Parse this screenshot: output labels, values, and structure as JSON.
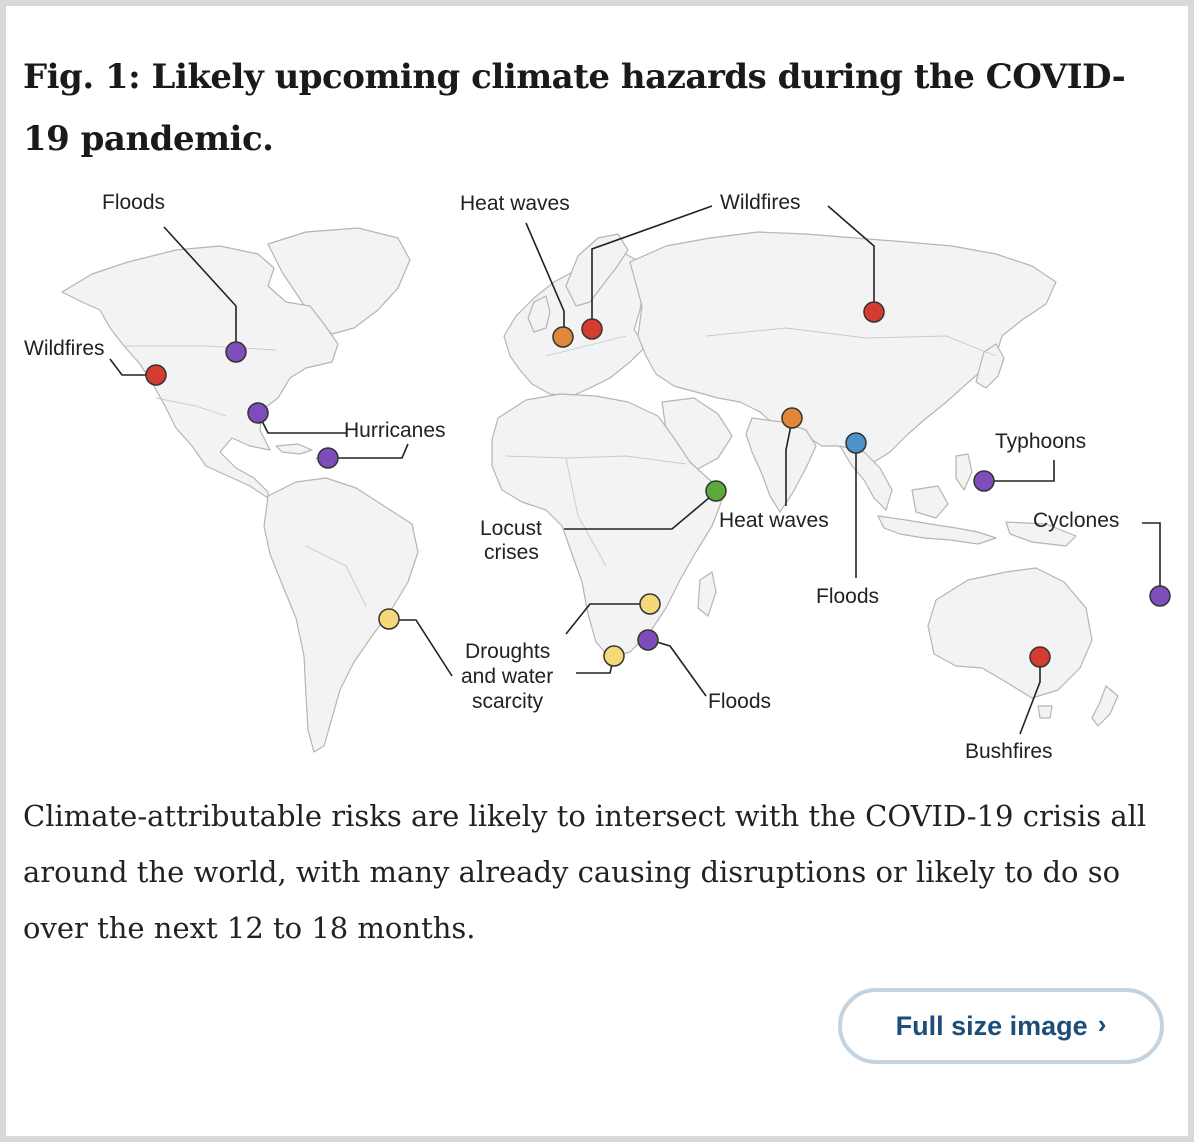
{
  "figure": {
    "title": "Fig. 1: Likely upcoming climate hazards during the COVID-19 pandemic.",
    "caption": "Climate-attributable risks are likely to intersect with the COVID-19 crisis all around the world, with many already causing disruptions or likely to do so over the next 12 to 18 months."
  },
  "colors": {
    "wildfires": "#d63b2f",
    "floods_storms": "#7e4cbb",
    "heat_waves": "#e0873a",
    "locust": "#5aaa3c",
    "floods_south_asia": "#4c93c8",
    "droughts": "#f4d97a"
  },
  "map": {
    "labels": {
      "floods_na": "Floods",
      "wildfires_na": "Wildfires",
      "hurricanes": "Hurricanes",
      "heat_waves_eu": "Heat waves",
      "wildfires_siberia": "Wildfires",
      "locust_line1": "Locust",
      "locust_line2": "crises",
      "heat_waves_asia": "Heat waves",
      "floods_asia": "Floods",
      "typhoons": "Typhoons",
      "cyclones": "Cyclones",
      "droughts_line1": "Droughts",
      "droughts_line2": "and water",
      "droughts_line3": "scarcity",
      "floods_africa": "Floods",
      "bushfires": "Bushfires"
    },
    "markers": [
      {
        "hazard": "Floods",
        "region": "North America",
        "color": "purple"
      },
      {
        "hazard": "Wildfires",
        "region": "Western North America",
        "color": "red"
      },
      {
        "hazard": "Hurricanes",
        "region": "Gulf of Mexico",
        "color": "purple"
      },
      {
        "hazard": "Hurricanes",
        "region": "Caribbean",
        "color": "purple"
      },
      {
        "hazard": "Heat waves",
        "region": "Western Europe",
        "color": "orange"
      },
      {
        "hazard": "Wildfires",
        "region": "Central Europe",
        "color": "red"
      },
      {
        "hazard": "Wildfires",
        "region": "Siberia",
        "color": "red"
      },
      {
        "hazard": "Locust crises",
        "region": "East Africa",
        "color": "green"
      },
      {
        "hazard": "Heat waves",
        "region": "South Asia",
        "color": "orange"
      },
      {
        "hazard": "Floods",
        "region": "Bangladesh",
        "color": "blue"
      },
      {
        "hazard": "Typhoons",
        "region": "Philippines",
        "color": "purple"
      },
      {
        "hazard": "Cyclones",
        "region": "South Pacific",
        "color": "purple"
      },
      {
        "hazard": "Droughts and water scarcity",
        "region": "Brazil",
        "color": "yellow"
      },
      {
        "hazard": "Droughts and water scarcity",
        "region": "Southern Africa",
        "color": "yellow"
      },
      {
        "hazard": "Droughts and water scarcity",
        "region": "South Africa",
        "color": "yellow"
      },
      {
        "hazard": "Floods",
        "region": "Southeast Africa",
        "color": "purple"
      },
      {
        "hazard": "Bushfires",
        "region": "Southeast Australia",
        "color": "red"
      }
    ]
  },
  "button": {
    "label": "Full size image",
    "chevron": "›"
  }
}
